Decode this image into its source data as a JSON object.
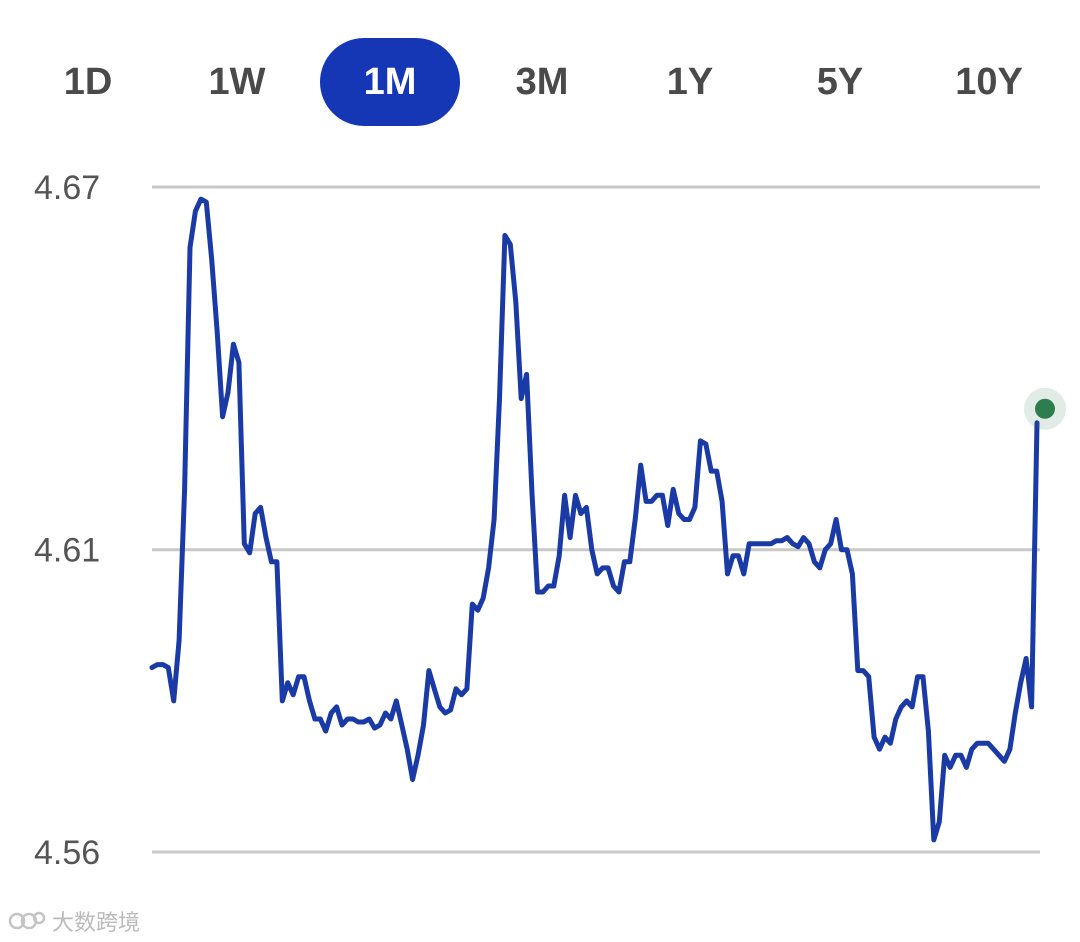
{
  "tabs": [
    {
      "label": "1D",
      "active": false
    },
    {
      "label": "1W",
      "active": false
    },
    {
      "label": "1M",
      "active": true
    },
    {
      "label": "3M",
      "active": false
    },
    {
      "label": "1Y",
      "active": false
    },
    {
      "label": "5Y",
      "active": false
    },
    {
      "label": "10Y",
      "active": false
    }
  ],
  "watermark": "大数跨境",
  "colors": {
    "line": "#1a3aa6",
    "accent": "#1537b5",
    "endpoint": "#2e7d4f",
    "grid": "#c8c8c8"
  },
  "chart_data": {
    "type": "line",
    "title": "",
    "xlabel": "",
    "ylabel": "",
    "ylim": [
      4.56,
      4.67
    ],
    "y_ticks": [
      "4.67",
      "4.61",
      "4.56"
    ],
    "grid": true,
    "series": [
      {
        "values": [
          4.5905,
          4.591,
          4.591,
          4.5905,
          4.585,
          4.595,
          4.62,
          4.66,
          4.666,
          4.668,
          4.6675,
          4.658,
          4.646,
          4.632,
          4.636,
          4.644,
          4.641,
          4.611,
          4.6095,
          4.616,
          4.617,
          4.612,
          4.608,
          4.608,
          4.585,
          4.588,
          4.586,
          4.589,
          4.589,
          4.585,
          4.582,
          4.582,
          4.58,
          4.583,
          4.584,
          4.581,
          4.582,
          4.582,
          4.5815,
          4.5815,
          4.582,
          4.5805,
          4.581,
          4.583,
          4.582,
          4.585,
          4.581,
          4.577,
          4.572,
          4.576,
          4.581,
          4.59,
          4.587,
          4.584,
          4.583,
          4.5835,
          4.587,
          4.586,
          4.587,
          4.601,
          4.6,
          4.602,
          4.607,
          4.615,
          4.635,
          4.662,
          4.6605,
          4.651,
          4.635,
          4.639,
          4.619,
          4.603,
          4.603,
          4.604,
          4.604,
          4.609,
          4.619,
          4.612,
          4.619,
          4.616,
          4.617,
          4.61,
          4.606,
          4.607,
          4.607,
          4.604,
          4.603,
          4.608,
          4.608,
          4.615,
          4.624,
          4.618,
          4.618,
          4.619,
          4.619,
          4.614,
          4.62,
          4.616,
          4.615,
          4.615,
          4.617,
          4.628,
          4.6275,
          4.623,
          4.623,
          4.618,
          4.606,
          4.609,
          4.609,
          4.606,
          4.611,
          4.611,
          4.611,
          4.611,
          4.611,
          4.6115,
          4.6115,
          4.612,
          4.611,
          4.6105,
          4.612,
          4.611,
          4.608,
          4.607,
          4.61,
          4.611,
          4.615,
          4.61,
          4.61,
          4.606,
          4.59,
          4.59,
          4.589,
          4.579,
          4.577,
          4.579,
          4.578,
          4.582,
          4.584,
          4.585,
          4.584,
          4.589,
          4.589,
          4.58,
          4.562,
          4.565,
          4.576,
          4.574,
          4.576,
          4.576,
          4.574,
          4.577,
          4.578,
          4.578,
          4.578,
          4.577,
          4.576,
          4.575,
          4.577,
          4.583,
          4.588,
          4.592,
          4.584,
          4.631
        ]
      }
    ]
  }
}
